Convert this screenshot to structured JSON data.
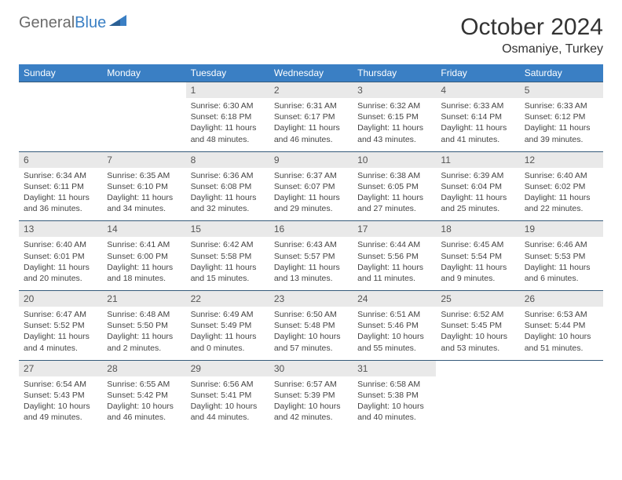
{
  "logo": {
    "word1": "General",
    "word2": "Blue"
  },
  "title": "October 2024",
  "subtitle": "Osmaniye, Turkey",
  "colors": {
    "header_bg": "#3a7fc4",
    "header_text": "#ffffff",
    "daynum_bg": "#e9e9e9",
    "rule": "#355a7a",
    "logo_gray": "#6b6b6b",
    "logo_blue": "#3a7fc4"
  },
  "fonts": {
    "body": 10.5,
    "dow": 12,
    "daynum": 12,
    "title": 30,
    "subtitle": 16
  },
  "days_of_week": [
    "Sunday",
    "Monday",
    "Tuesday",
    "Wednesday",
    "Thursday",
    "Friday",
    "Saturday"
  ],
  "weeks": [
    {
      "nums": [
        "",
        "",
        "1",
        "2",
        "3",
        "4",
        "5"
      ],
      "cells": [
        null,
        null,
        {
          "sunrise": "Sunrise: 6:30 AM",
          "sunset": "Sunset: 6:18 PM",
          "day": "Daylight: 11 hours and 48 minutes."
        },
        {
          "sunrise": "Sunrise: 6:31 AM",
          "sunset": "Sunset: 6:17 PM",
          "day": "Daylight: 11 hours and 46 minutes."
        },
        {
          "sunrise": "Sunrise: 6:32 AM",
          "sunset": "Sunset: 6:15 PM",
          "day": "Daylight: 11 hours and 43 minutes."
        },
        {
          "sunrise": "Sunrise: 6:33 AM",
          "sunset": "Sunset: 6:14 PM",
          "day": "Daylight: 11 hours and 41 minutes."
        },
        {
          "sunrise": "Sunrise: 6:33 AM",
          "sunset": "Sunset: 6:12 PM",
          "day": "Daylight: 11 hours and 39 minutes."
        }
      ]
    },
    {
      "nums": [
        "6",
        "7",
        "8",
        "9",
        "10",
        "11",
        "12"
      ],
      "cells": [
        {
          "sunrise": "Sunrise: 6:34 AM",
          "sunset": "Sunset: 6:11 PM",
          "day": "Daylight: 11 hours and 36 minutes."
        },
        {
          "sunrise": "Sunrise: 6:35 AM",
          "sunset": "Sunset: 6:10 PM",
          "day": "Daylight: 11 hours and 34 minutes."
        },
        {
          "sunrise": "Sunrise: 6:36 AM",
          "sunset": "Sunset: 6:08 PM",
          "day": "Daylight: 11 hours and 32 minutes."
        },
        {
          "sunrise": "Sunrise: 6:37 AM",
          "sunset": "Sunset: 6:07 PM",
          "day": "Daylight: 11 hours and 29 minutes."
        },
        {
          "sunrise": "Sunrise: 6:38 AM",
          "sunset": "Sunset: 6:05 PM",
          "day": "Daylight: 11 hours and 27 minutes."
        },
        {
          "sunrise": "Sunrise: 6:39 AM",
          "sunset": "Sunset: 6:04 PM",
          "day": "Daylight: 11 hours and 25 minutes."
        },
        {
          "sunrise": "Sunrise: 6:40 AM",
          "sunset": "Sunset: 6:02 PM",
          "day": "Daylight: 11 hours and 22 minutes."
        }
      ]
    },
    {
      "nums": [
        "13",
        "14",
        "15",
        "16",
        "17",
        "18",
        "19"
      ],
      "cells": [
        {
          "sunrise": "Sunrise: 6:40 AM",
          "sunset": "Sunset: 6:01 PM",
          "day": "Daylight: 11 hours and 20 minutes."
        },
        {
          "sunrise": "Sunrise: 6:41 AM",
          "sunset": "Sunset: 6:00 PM",
          "day": "Daylight: 11 hours and 18 minutes."
        },
        {
          "sunrise": "Sunrise: 6:42 AM",
          "sunset": "Sunset: 5:58 PM",
          "day": "Daylight: 11 hours and 15 minutes."
        },
        {
          "sunrise": "Sunrise: 6:43 AM",
          "sunset": "Sunset: 5:57 PM",
          "day": "Daylight: 11 hours and 13 minutes."
        },
        {
          "sunrise": "Sunrise: 6:44 AM",
          "sunset": "Sunset: 5:56 PM",
          "day": "Daylight: 11 hours and 11 minutes."
        },
        {
          "sunrise": "Sunrise: 6:45 AM",
          "sunset": "Sunset: 5:54 PM",
          "day": "Daylight: 11 hours and 9 minutes."
        },
        {
          "sunrise": "Sunrise: 6:46 AM",
          "sunset": "Sunset: 5:53 PM",
          "day": "Daylight: 11 hours and 6 minutes."
        }
      ]
    },
    {
      "nums": [
        "20",
        "21",
        "22",
        "23",
        "24",
        "25",
        "26"
      ],
      "cells": [
        {
          "sunrise": "Sunrise: 6:47 AM",
          "sunset": "Sunset: 5:52 PM",
          "day": "Daylight: 11 hours and 4 minutes."
        },
        {
          "sunrise": "Sunrise: 6:48 AM",
          "sunset": "Sunset: 5:50 PM",
          "day": "Daylight: 11 hours and 2 minutes."
        },
        {
          "sunrise": "Sunrise: 6:49 AM",
          "sunset": "Sunset: 5:49 PM",
          "day": "Daylight: 11 hours and 0 minutes."
        },
        {
          "sunrise": "Sunrise: 6:50 AM",
          "sunset": "Sunset: 5:48 PM",
          "day": "Daylight: 10 hours and 57 minutes."
        },
        {
          "sunrise": "Sunrise: 6:51 AM",
          "sunset": "Sunset: 5:46 PM",
          "day": "Daylight: 10 hours and 55 minutes."
        },
        {
          "sunrise": "Sunrise: 6:52 AM",
          "sunset": "Sunset: 5:45 PM",
          "day": "Daylight: 10 hours and 53 minutes."
        },
        {
          "sunrise": "Sunrise: 6:53 AM",
          "sunset": "Sunset: 5:44 PM",
          "day": "Daylight: 10 hours and 51 minutes."
        }
      ]
    },
    {
      "nums": [
        "27",
        "28",
        "29",
        "30",
        "31",
        "",
        ""
      ],
      "cells": [
        {
          "sunrise": "Sunrise: 6:54 AM",
          "sunset": "Sunset: 5:43 PM",
          "day": "Daylight: 10 hours and 49 minutes."
        },
        {
          "sunrise": "Sunrise: 6:55 AM",
          "sunset": "Sunset: 5:42 PM",
          "day": "Daylight: 10 hours and 46 minutes."
        },
        {
          "sunrise": "Sunrise: 6:56 AM",
          "sunset": "Sunset: 5:41 PM",
          "day": "Daylight: 10 hours and 44 minutes."
        },
        {
          "sunrise": "Sunrise: 6:57 AM",
          "sunset": "Sunset: 5:39 PM",
          "day": "Daylight: 10 hours and 42 minutes."
        },
        {
          "sunrise": "Sunrise: 6:58 AM",
          "sunset": "Sunset: 5:38 PM",
          "day": "Daylight: 10 hours and 40 minutes."
        },
        null,
        null
      ]
    }
  ]
}
